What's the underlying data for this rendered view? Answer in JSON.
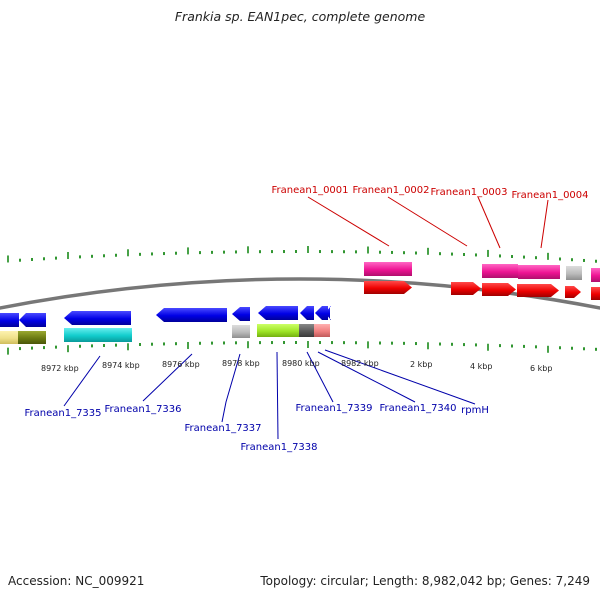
{
  "title": "Frankia sp. EAN1pec, complete genome",
  "footer": {
    "accession": "Accession: NC_009921",
    "summary": "Topology: circular; Length: 8,982,042 bp; Genes: 7,249"
  },
  "colors": {
    "top_label": "#cc0000",
    "bottom_label": "#0000aa",
    "backbone": "#777777",
    "tick": "#1a8a1a"
  },
  "scale_labels": [
    "8972 kbp",
    "8974 kbp",
    "8976 kbp",
    "8978 kbp",
    "8980 kbp",
    "8982 kbp",
    "2 kbp",
    "4 kbp",
    "6 kbp"
  ],
  "top_gene_labels": [
    "Franean1_0001",
    "Franean1_0002",
    "Franean1_0003",
    "Franean1_0004"
  ],
  "bottom_gene_labels": [
    "Franean1_7335",
    "Franean1_7336",
    "Franean1_7337",
    "Franean1_7338",
    "Franean1_7339",
    "Franean1_7340",
    "rpmH"
  ]
}
